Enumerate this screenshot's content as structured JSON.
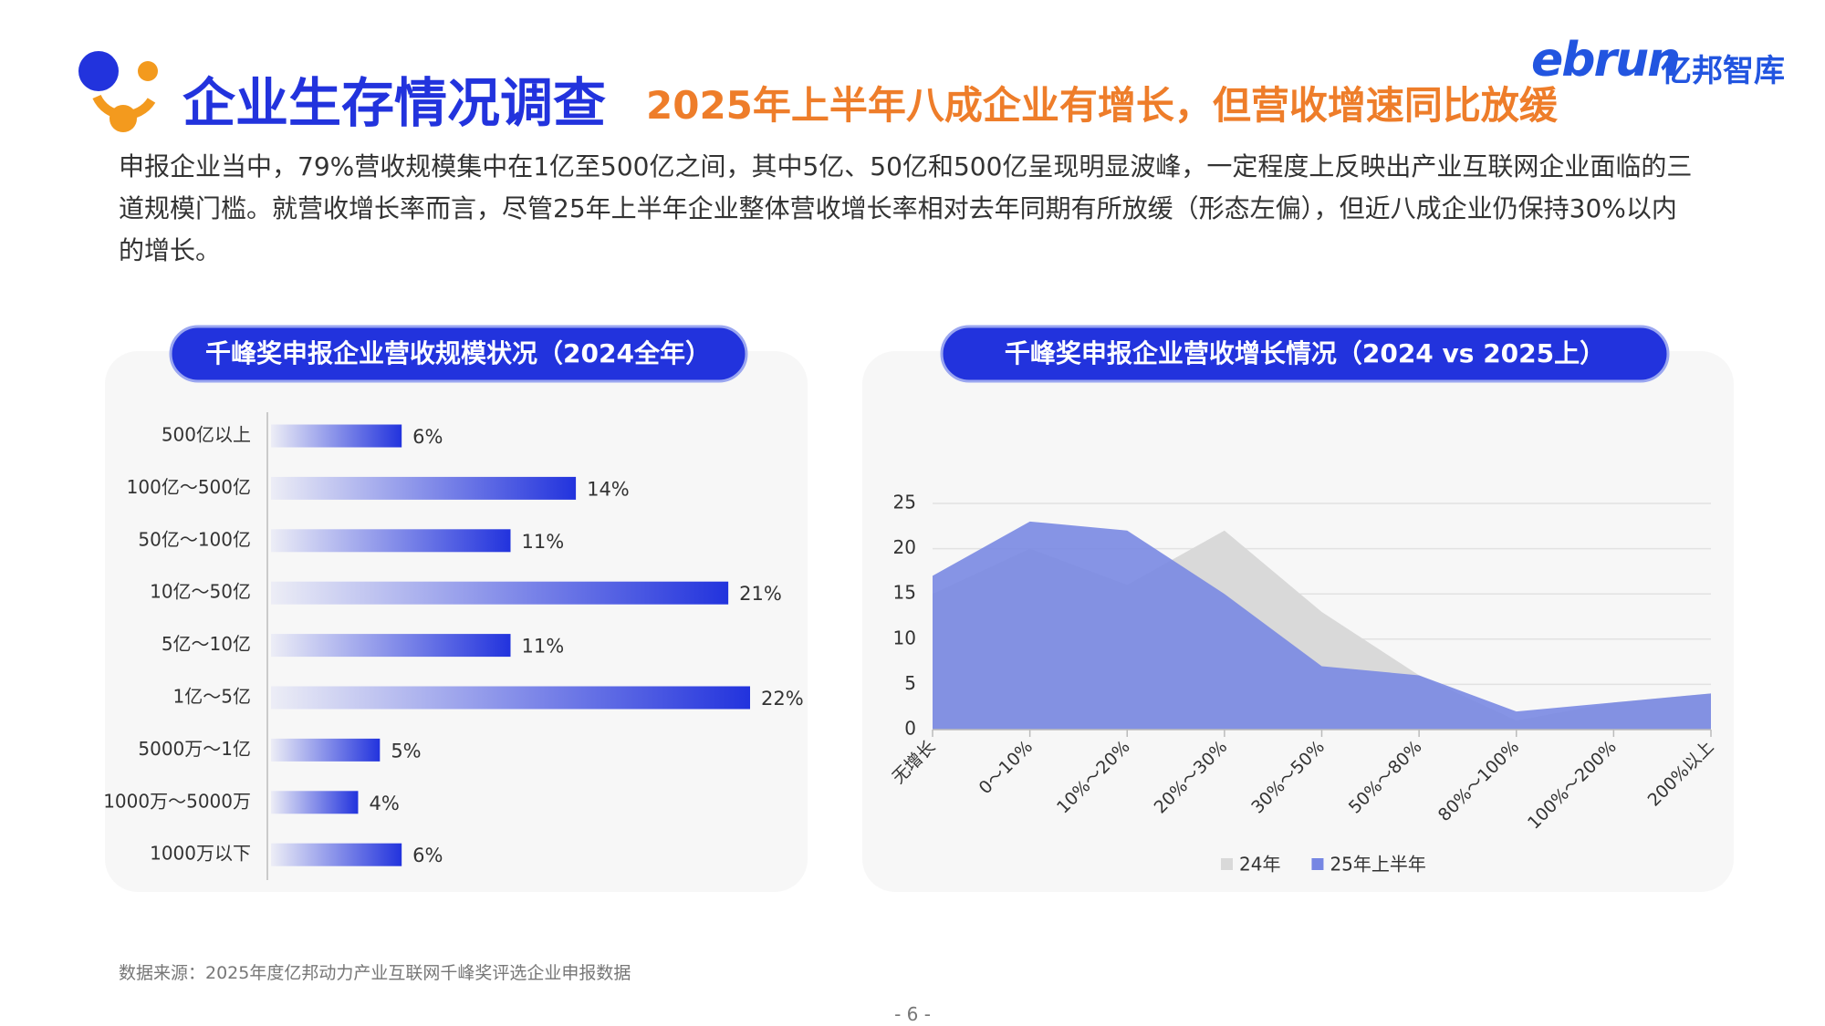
{
  "header": {
    "title": "企业生存情况调查",
    "subtitle": "2025年上半年八成企业有增长，但营收增速同比放缓",
    "logo_brand": "ebrun",
    "logo_text": "亿邦智库"
  },
  "description": "申报企业当中，79%营收规模集中在1亿至500亿之间，其中5亿、50亿和500亿呈现明显波峰，一定程度上反映出产业互联网企业面临的三道规模门槛。就营收增长率而言，尽管25年上半年企业整体营收增长率相对去年同期有所放缓（形态左偏），但近八成企业仍保持30%以内的增长。",
  "chart_data": [
    {
      "type": "bar",
      "orientation": "horizontal",
      "title": "千峰奖申报企业营收规模状况（2024全年）",
      "categories": [
        "500亿以上",
        "100亿～500亿",
        "50亿～100亿",
        "10亿～50亿",
        "5亿～10亿",
        "1亿～5亿",
        "5000万～1亿",
        "1000万～5000万",
        "1000万以下"
      ],
      "values": [
        6,
        14,
        11,
        21,
        11,
        22,
        5,
        4,
        6
      ],
      "value_labels": [
        "6%",
        "14%",
        "11%",
        "21%",
        "11%",
        "22%",
        "5%",
        "4%",
        "6%"
      ],
      "color": "#2233dd"
    },
    {
      "type": "area",
      "title": "千峰奖申报企业营收增长情况（2024 vs 2025上）",
      "categories": [
        "无增长",
        "0～10%",
        "10%～20%",
        "20%～30%",
        "30%～50%",
        "50%～80%",
        "80%～100%",
        "100%～200%",
        "200%以上"
      ],
      "series": [
        {
          "name": "24年",
          "color": "#d9d9d9",
          "values": [
            15,
            20,
            16,
            22,
            13,
            6,
            1,
            3,
            4
          ]
        },
        {
          "name": "25年上半年",
          "color": "#7686e3",
          "values": [
            17,
            23,
            22,
            15,
            7,
            6,
            2,
            3,
            4
          ]
        }
      ],
      "ylim": [
        0,
        25
      ],
      "yticks": [
        0,
        5,
        10,
        15,
        20,
        25
      ],
      "grid": true,
      "legend": "bottom"
    }
  ],
  "source": "数据来源：2025年度亿邦动力产业互联网千峰奖评选企业申报数据",
  "page_number": "- 6 -"
}
